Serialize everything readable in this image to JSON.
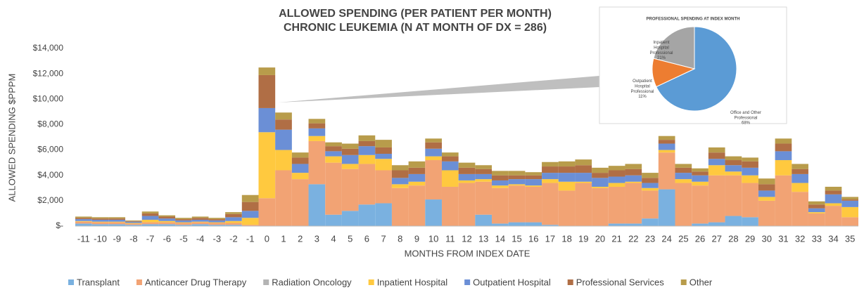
{
  "chart_data": [
    {
      "type": "stacked_bar",
      "title": "ALLOWED SPENDING (PER PATIENT PER MONTH)",
      "subtitle": "CHRONIC LEUKEMIA (N AT MONTH OF DX = 286)",
      "y_label": "ALLOWED SPENDING $PPPM",
      "x_label": "MONTHS FROM INDEX DATE",
      "categories": [
        "-11",
        "-10",
        "-9",
        "-8",
        "-7",
        "-6",
        "-5",
        "-4",
        "-3",
        "-2",
        "-1",
        "0",
        "1",
        "2",
        "3",
        "4",
        "5",
        "6",
        "7",
        "8",
        "9",
        "10",
        "11",
        "12",
        "13",
        "14",
        "15",
        "16",
        "17",
        "18",
        "19",
        "20",
        "21",
        "22",
        "23",
        "24",
        "25",
        "26",
        "27",
        "28",
        "29",
        "30",
        "31",
        "32",
        "33",
        "34",
        "35"
      ],
      "ylim": [
        0,
        14000
      ],
      "yticks": [
        {
          "value": 0,
          "label": "$-"
        },
        {
          "value": 2000,
          "label": "$2,000"
        },
        {
          "value": 4000,
          "label": "$4,000"
        },
        {
          "value": 6000,
          "label": "$6,000"
        },
        {
          "value": 8000,
          "label": "$8,000"
        },
        {
          "value": 10000,
          "label": "$10,000"
        },
        {
          "value": 12000,
          "label": "$12,000"
        },
        {
          "value": 14000,
          "label": "$14,000"
        }
      ],
      "legend": "bottom",
      "series": [
        {
          "name": "Transplant",
          "color": "#7ab1e0",
          "values": [
            200,
            150,
            150,
            100,
            150,
            150,
            100,
            150,
            100,
            100,
            0,
            0,
            0,
            0,
            3300,
            900,
            1200,
            1700,
            1800,
            0,
            0,
            2100,
            0,
            0,
            900,
            200,
            300,
            300,
            100,
            0,
            0,
            0,
            200,
            200,
            600,
            2900,
            0,
            200,
            300,
            800,
            700,
            0,
            0,
            0,
            0,
            0,
            0
          ]
        },
        {
          "name": "Anticancer Drug Therapy",
          "color": "#f2a374",
          "values": [
            150,
            150,
            150,
            100,
            150,
            150,
            150,
            150,
            150,
            150,
            100,
            2200,
            4400,
            3700,
            3400,
            4100,
            3300,
            3200,
            2600,
            3000,
            3200,
            3100,
            3100,
            3400,
            2600,
            2800,
            2900,
            2800,
            3300,
            2800,
            3400,
            3000,
            2900,
            3200,
            2200,
            2900,
            3400,
            3000,
            3700,
            3200,
            2700,
            2000,
            4000,
            2700,
            1000,
            1600,
            700
          ]
        },
        {
          "name": "Radiation Oncology",
          "color": "#b4b4b4",
          "values": [
            0,
            0,
            0,
            0,
            0,
            0,
            0,
            0,
            0,
            0,
            0,
            0,
            0,
            0,
            0,
            0,
            0,
            0,
            0,
            0,
            0,
            0,
            0,
            0,
            0,
            0,
            0,
            0,
            0,
            0,
            0,
            0,
            0,
            0,
            0,
            0,
            0,
            0,
            0,
            0,
            0,
            0,
            0,
            0,
            0,
            0,
            0
          ]
        },
        {
          "name": "Inpatient Hospital",
          "color": "#ffc93f",
          "values": [
            50,
            50,
            50,
            50,
            200,
            100,
            50,
            50,
            50,
            150,
            550,
            5200,
            1600,
            500,
            400,
            500,
            400,
            700,
            900,
            300,
            300,
            300,
            1300,
            200,
            200,
            200,
            100,
            100,
            300,
            700,
            100,
            100,
            300,
            100,
            200,
            200,
            300,
            300,
            800,
            300,
            600,
            300,
            1200,
            700,
            100,
            200,
            800
          ]
        },
        {
          "name": "Outpatient Hospital",
          "color": "#6b8fd6",
          "values": [
            150,
            150,
            150,
            100,
            300,
            200,
            150,
            150,
            150,
            300,
            550,
            1900,
            1600,
            700,
            600,
            400,
            700,
            700,
            400,
            500,
            600,
            600,
            700,
            500,
            400,
            400,
            400,
            500,
            500,
            700,
            700,
            700,
            500,
            500,
            400,
            500,
            500,
            500,
            500,
            500,
            600,
            500,
            700,
            700,
            300,
            700,
            500
          ]
        },
        {
          "name": "Professional Services",
          "color": "#b06e45",
          "values": [
            100,
            100,
            100,
            50,
            200,
            150,
            100,
            150,
            100,
            250,
            700,
            2600,
            800,
            500,
            400,
            400,
            500,
            400,
            500,
            600,
            500,
            500,
            400,
            500,
            400,
            400,
            300,
            300,
            500,
            500,
            600,
            400,
            500,
            500,
            400,
            300,
            400,
            300,
            500,
            400,
            500,
            500,
            600,
            400,
            300,
            300,
            100
          ]
        },
        {
          "name": "Other",
          "color": "#b89c4b",
          "values": [
            100,
            100,
            100,
            50,
            150,
            100,
            100,
            100,
            100,
            150,
            550,
            600,
            550,
            400,
            350,
            300,
            400,
            450,
            600,
            400,
            500,
            300,
            300,
            400,
            300,
            350,
            350,
            250,
            350,
            400,
            450,
            400,
            350,
            400,
            400,
            300,
            300,
            250,
            400,
            300,
            300,
            450,
            400,
            400,
            250,
            300,
            200
          ]
        }
      ]
    },
    {
      "type": "pie",
      "title": "PROFESSIONAL SPENDING AT INDEX MONTH",
      "categories": [
        "Office and Other Professional",
        "Outpatient Hospital Professional",
        "Inpatient Hospital Professional"
      ],
      "values": [
        68,
        11,
        21
      ],
      "value_labels": [
        "68%",
        "11%",
        "21%"
      ],
      "colors": [
        "#5b9bd5",
        "#ed7d31",
        "#a5a5a5"
      ]
    }
  ]
}
